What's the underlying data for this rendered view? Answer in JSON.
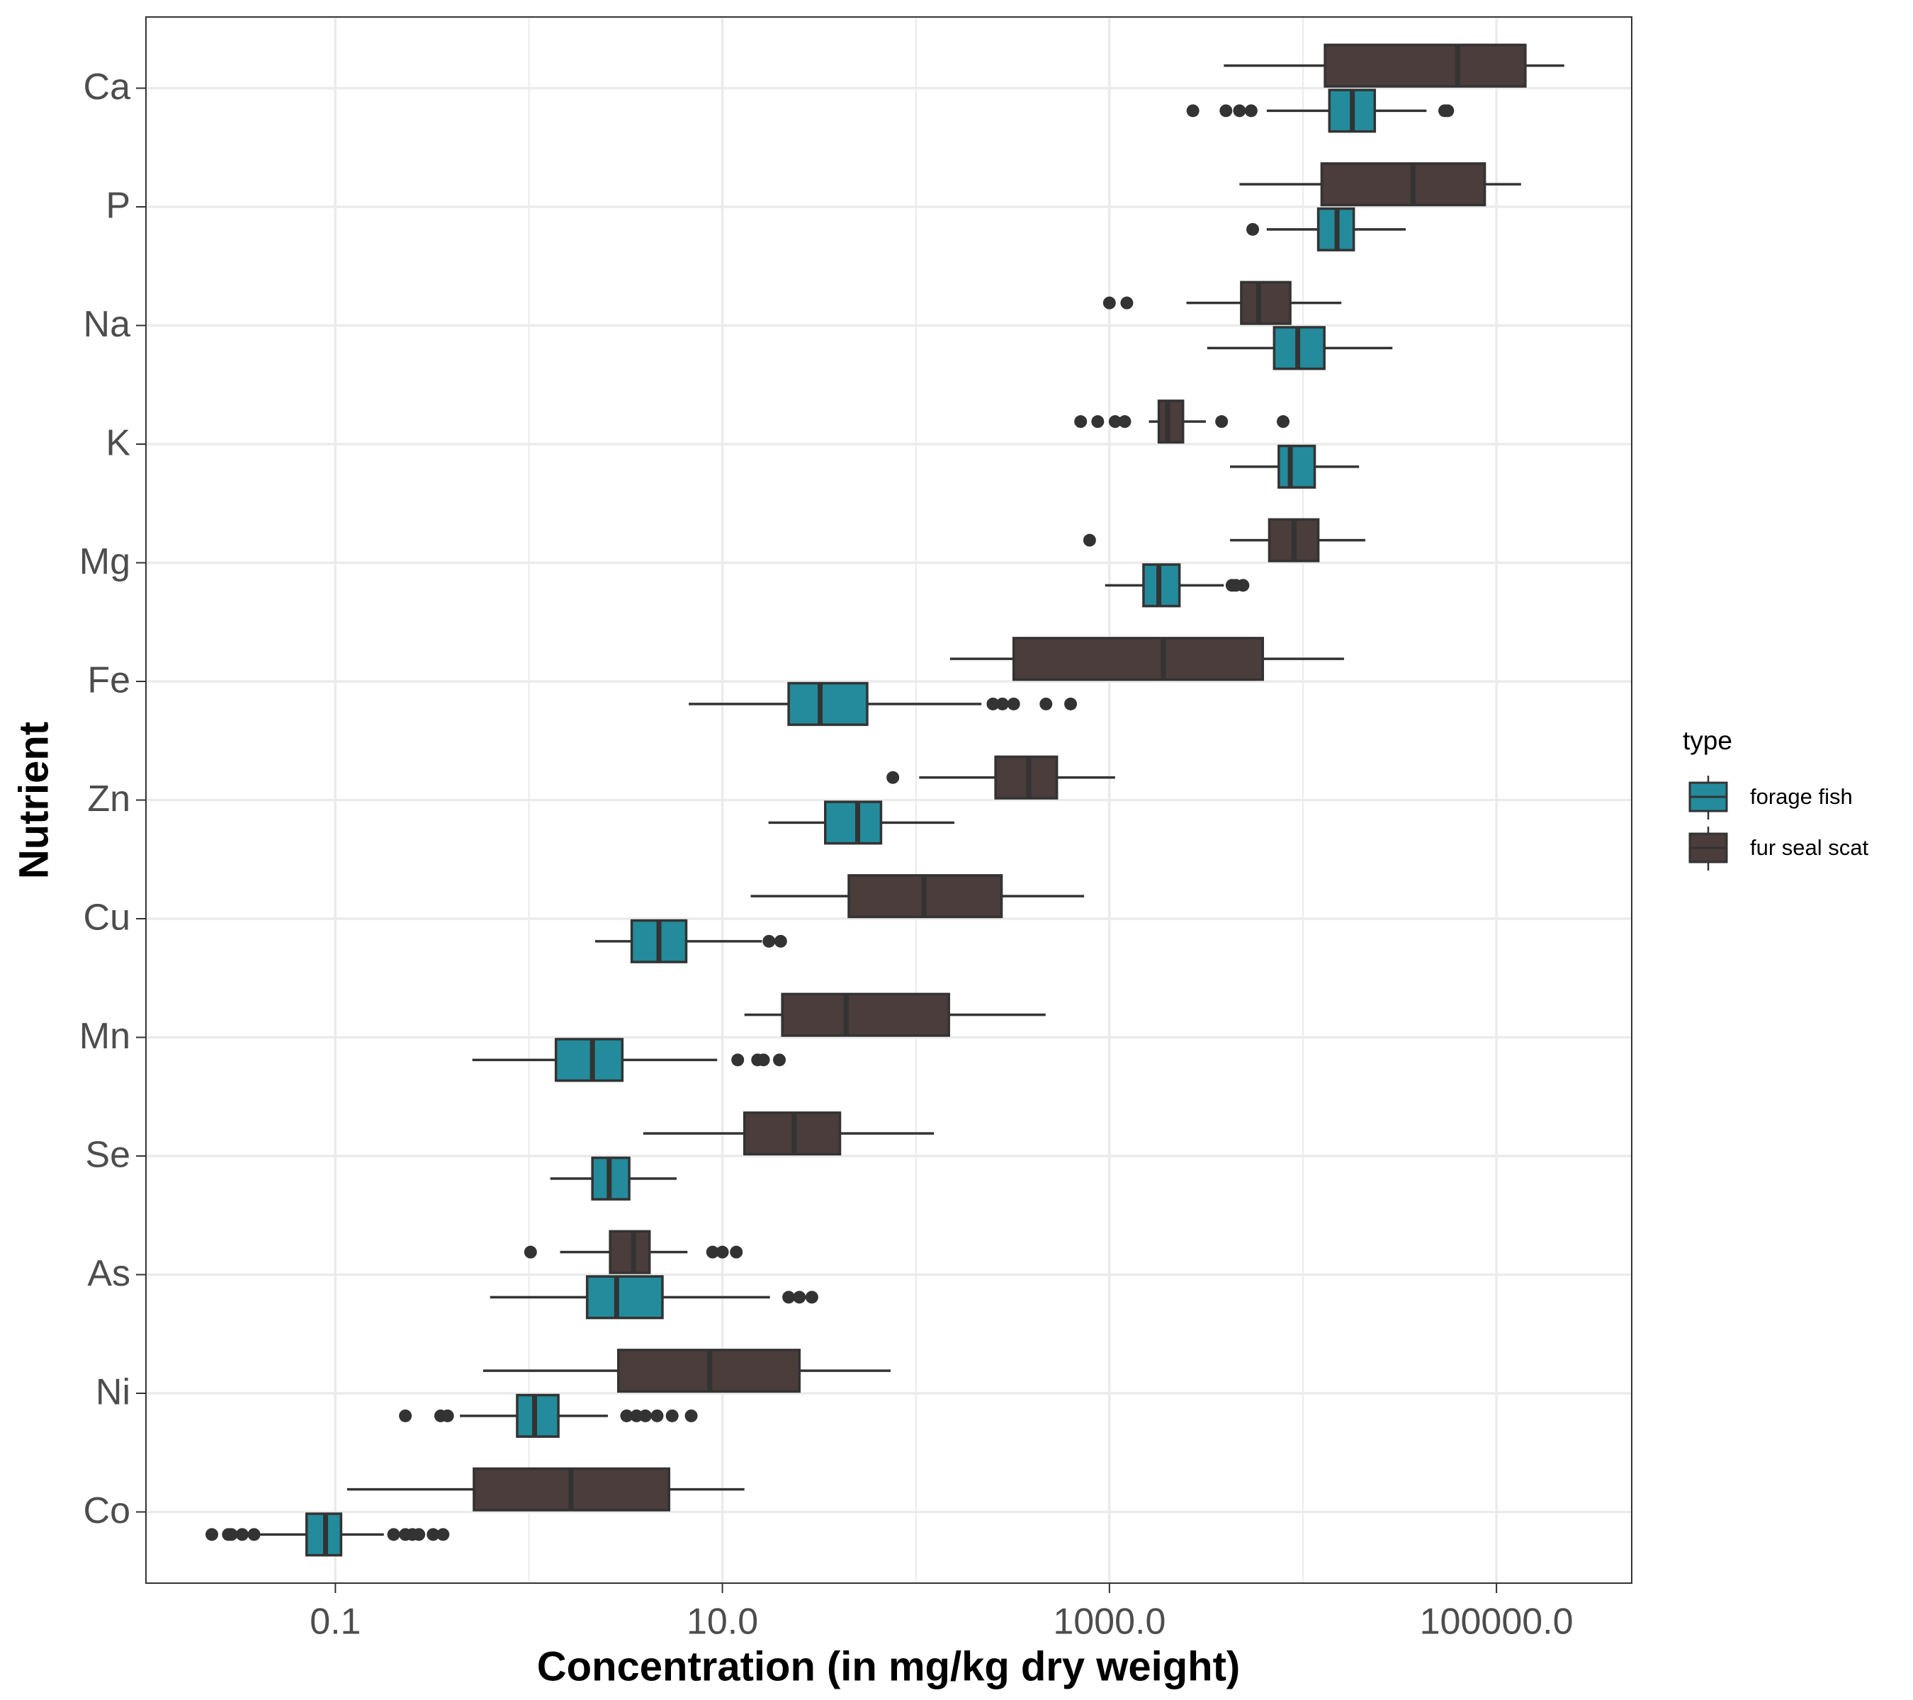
{
  "chart_data": {
    "type": "boxplot",
    "orientation": "horizontal",
    "x_label": "Concentration (in mg/kg dry weight)",
    "y_label": "Nutrient",
    "log_x": true,
    "grid": true,
    "legend_title": "type",
    "legend_position": "right",
    "xlim": [
      0.0105,
      500000
    ],
    "xticks": [
      0.1,
      {
        "value": 10,
        "label": "10.0"
      },
      {
        "value": 1000,
        "label": "1000.0"
      },
      {
        "value": 100000,
        "label": "100000.0"
      }
    ],
    "x_minor_grid": [
      1,
      100,
      10000
    ],
    "categories": [
      "Ca",
      "P",
      "Na",
      "K",
      "Mg",
      "Fe",
      "Zn",
      "Cu",
      "Mn",
      "Se",
      "As",
      "Ni",
      "Co"
    ],
    "series": [
      {
        "name": "forage fish",
        "color": "#238b9b",
        "values": [
          {
            "min": 6500,
            "q1": 13700,
            "median": 18000,
            "q3": 23500,
            "max": 43500,
            "outliers": [
              2700,
              4000,
              4700,
              5400,
              54000,
              56000
            ]
          },
          {
            "min": 6500,
            "q1": 12000,
            "median": 15000,
            "q3": 18300,
            "max": 34000,
            "outliers": [
              5500
            ]
          },
          {
            "min": 3200,
            "q1": 7100,
            "median": 9400,
            "q3": 12900,
            "max": 29000,
            "outliers": []
          },
          {
            "min": 4200,
            "q1": 7500,
            "median": 8600,
            "q3": 11500,
            "max": 19500,
            "outliers": []
          },
          {
            "min": 950,
            "q1": 1500,
            "median": 1800,
            "q3": 2300,
            "max": 3900,
            "outliers": [
              4300,
              4500,
              4900
            ]
          },
          {
            "min": 6.7,
            "q1": 22,
            "median": 32,
            "q3": 56,
            "max": 218,
            "outliers": [
              250,
              280,
              320,
              470,
              630
            ]
          },
          {
            "min": 17.3,
            "q1": 34,
            "median": 50,
            "q3": 66,
            "max": 158,
            "outliers": []
          },
          {
            "min": 2.2,
            "q1": 3.4,
            "median": 4.7,
            "q3": 6.5,
            "max": 16,
            "outliers": [
              17.4,
              20
            ]
          },
          {
            "min": 0.51,
            "q1": 1.38,
            "median": 2.13,
            "q3": 3.04,
            "max": 9.4,
            "outliers": [
              12,
              15.2,
              16.3,
              19.7
            ]
          },
          {
            "min": 1.29,
            "q1": 2.13,
            "median": 2.6,
            "q3": 3.3,
            "max": 5.8,
            "outliers": []
          },
          {
            "min": 0.63,
            "q1": 2.0,
            "median": 2.84,
            "q3": 4.9,
            "max": 17.6,
            "outliers": [
              22,
              25,
              29
            ]
          },
          {
            "min": 0.44,
            "q1": 0.87,
            "median": 1.07,
            "q3": 1.42,
            "max": 2.56,
            "outliers": [
              0.23,
              0.35,
              0.38,
              3.2,
              3.6,
              4.0,
              4.6,
              5.5,
              6.9
            ]
          },
          {
            "min": 0.041,
            "q1": 0.071,
            "median": 0.089,
            "q3": 0.107,
            "max": 0.178,
            "outliers": [
              0.023,
              0.028,
              0.029,
              0.033,
              0.038,
              0.2,
              0.23,
              0.25,
              0.27,
              0.32,
              0.36
            ]
          }
        ]
      },
      {
        "name": "fur seal scat",
        "color": "#4a3d3b",
        "values": [
          {
            "min": 3900,
            "q1": 13000,
            "median": 63000,
            "q3": 141000,
            "max": 224000,
            "outliers": []
          },
          {
            "min": 4700,
            "q1": 12500,
            "median": 37000,
            "q3": 87000,
            "max": 134000,
            "outliers": []
          },
          {
            "min": 2500,
            "q1": 4800,
            "median": 5900,
            "q3": 8600,
            "max": 15800,
            "outliers": [
              1000,
              1230
            ]
          },
          {
            "min": 1600,
            "q1": 1800,
            "median": 2000,
            "q3": 2400,
            "max": 3150,
            "outliers": [
              710,
              870,
              1070,
              1200,
              3800,
              7900
            ]
          },
          {
            "min": 4200,
            "q1": 6700,
            "median": 9000,
            "q3": 12000,
            "max": 21000,
            "outliers": [
              790
            ]
          },
          {
            "min": 150,
            "q1": 320,
            "median": 1900,
            "q3": 6200,
            "max": 16300,
            "outliers": []
          },
          {
            "min": 104,
            "q1": 258,
            "median": 383,
            "q3": 535,
            "max": 1070,
            "outliers": [
              76
            ]
          },
          {
            "min": 14,
            "q1": 45,
            "median": 110,
            "q3": 277,
            "max": 740,
            "outliers": []
          },
          {
            "min": 13,
            "q1": 20.4,
            "median": 43.6,
            "q3": 148,
            "max": 468,
            "outliers": []
          },
          {
            "min": 3.9,
            "q1": 13,
            "median": 23.5,
            "q3": 40.5,
            "max": 124,
            "outliers": []
          },
          {
            "min": 1.45,
            "q1": 2.63,
            "median": 3.47,
            "q3": 4.2,
            "max": 6.6,
            "outliers": [
              1.02,
              8.9,
              10,
              11.8
            ]
          },
          {
            "min": 0.58,
            "q1": 2.9,
            "median": 8.6,
            "q3": 25,
            "max": 74,
            "outliers": []
          },
          {
            "min": 0.115,
            "q1": 0.52,
            "median": 1.65,
            "q3": 5.3,
            "max": 13,
            "outliers": []
          }
        ]
      }
    ]
  }
}
